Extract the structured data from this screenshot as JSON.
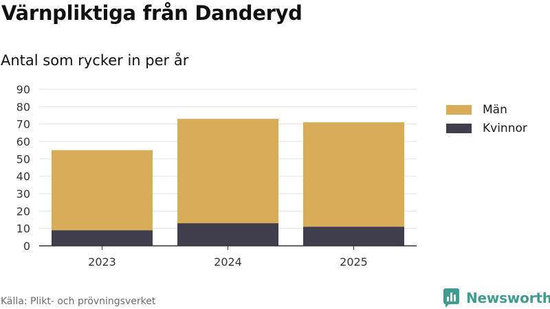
{
  "header": {
    "title": "Värnpliktiga från Danderyd",
    "subtitle": "Antal som rycker in per år"
  },
  "legend": {
    "items": [
      {
        "label": "Män",
        "color": "#d9ad57"
      },
      {
        "label": "Kvinnor",
        "color": "#403e4d"
      }
    ]
  },
  "footer": {
    "source": "Källa: Plikt- och prövningsverket",
    "brand": "Newsworthy",
    "brand_color": "#3f9c8e"
  },
  "chart_data": {
    "type": "bar",
    "stacked": true,
    "title": "Värnpliktiga från Danderyd",
    "subtitle": "Antal som rycker in per år",
    "xlabel": "",
    "ylabel": "",
    "categories": [
      "2023",
      "2024",
      "2025"
    ],
    "series": [
      {
        "name": "Kvinnor",
        "values": [
          9,
          13,
          11
        ],
        "color": "#403e4d"
      },
      {
        "name": "Män",
        "values": [
          46,
          60,
          60
        ],
        "color": "#d9ad57"
      }
    ],
    "ylim": [
      0,
      90
    ],
    "yticks": [
      0,
      10,
      20,
      30,
      40,
      50,
      60,
      70,
      80,
      90
    ],
    "grid": true,
    "legend_position": "right"
  }
}
